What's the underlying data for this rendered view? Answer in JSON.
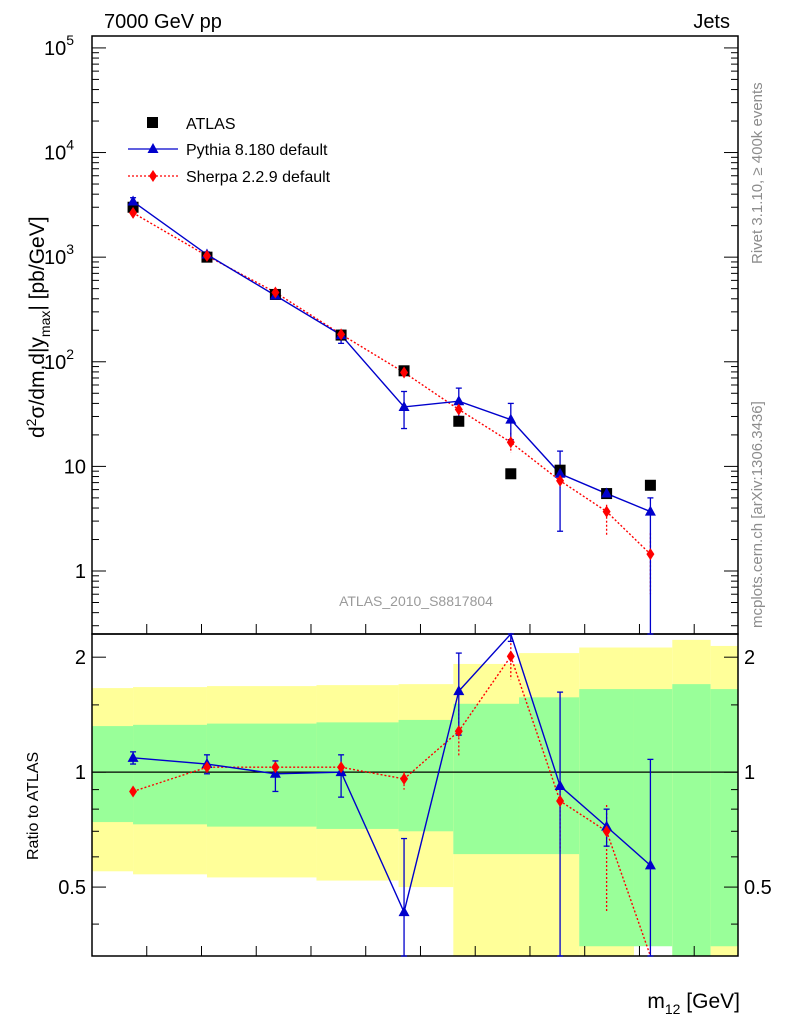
{
  "header": {
    "left_label": "7000 GeV pp",
    "right_label": "Jets"
  },
  "side": {
    "rivet": "Rivet 3.1.10, ≥ 400k events",
    "url": "mcplots.cern.ch [arXiv:1306.3436]"
  },
  "watermark": "ATLAS_2010_S8817804",
  "main_ylabel": {
    "prefix": "d",
    "sup": "2",
    "mid": "σ/dm,d|y",
    "sub": "max",
    "suffix": "| [pb/GeV]"
  },
  "ratio_ylabel": "Ratio to ATLAS",
  "xlabel": {
    "base": "m",
    "sub": "12",
    "rest": " [GeV]"
  },
  "legend": [
    {
      "key": "atlas",
      "label": "ATLAS",
      "color": "#000000",
      "marker": "square"
    },
    {
      "key": "pythia",
      "label": "Pythia 8.180 default",
      "color": "#0000cc",
      "marker": "triangle"
    },
    {
      "key": "sherpa",
      "label": "Sherpa 2.2.9 default",
      "color": "#ff0000",
      "marker": "diamond"
    }
  ],
  "chart_data": {
    "type": "scatter",
    "y_scale": "log",
    "ylim": [
      0.25,
      130000
    ],
    "ratio_ylim": [
      0.33,
      2.3
    ],
    "main_ticks": [
      {
        "value": 1,
        "label": "1",
        "exp": ""
      },
      {
        "value": 10,
        "label": "10",
        "exp": ""
      },
      {
        "value": 100,
        "label": "10",
        "exp": "2"
      },
      {
        "value": 1000,
        "label": "10",
        "exp": "3"
      },
      {
        "value": 10000,
        "label": "10",
        "exp": "4"
      },
      {
        "value": 100000,
        "label": "10",
        "exp": "5"
      }
    ],
    "ratio_ticks": [
      {
        "value": 0.5,
        "label": "0.5"
      },
      {
        "value": 1,
        "label": "1"
      },
      {
        "value": 2,
        "label": "2"
      }
    ],
    "atlas": [
      3000,
      1000,
      440,
      180,
      82,
      27,
      8.5,
      9.2,
      5.5,
      6.6
    ],
    "pythia": {
      "values": [
        3400,
        1060,
        430,
        180,
        37,
        42,
        28,
        8.5,
        5.5,
        3.7
      ],
      "err_up": [
        3700,
        1120,
        470,
        200,
        52,
        56,
        40,
        14,
        5.9,
        5.0
      ],
      "err_down": [
        3200,
        1000,
        400,
        150,
        23,
        30,
        18,
        2.4,
        5.1,
        0.2
      ]
    },
    "sherpa": {
      "values": [
        2650,
        1030,
        460,
        183,
        79,
        35,
        17,
        7.3,
        3.7,
        1.45
      ],
      "err_up": [
        2750,
        1060,
        480,
        195,
        86,
        40,
        21,
        8.3,
        4.3,
        2.3
      ],
      "err_down": [
        2550,
        1000,
        440,
        170,
        72,
        31,
        13.5,
        6.3,
        2.2,
        0.6
      ]
    },
    "ratio_pythia": {
      "values": [
        1.09,
        1.05,
        0.99,
        1.0,
        0.43,
        1.63,
        3.0,
        0.92,
        0.72,
        0.57
      ],
      "err_up": [
        1.13,
        1.11,
        1.07,
        1.11,
        0.67,
        2.05,
        4.0,
        1.62,
        0.8,
        1.08
      ],
      "err_down": [
        1.05,
        0.99,
        0.89,
        0.86,
        0.1,
        1.25,
        2.2,
        0.1,
        0.64,
        0.1
      ]
    },
    "ratio_sherpa": {
      "values": [
        0.89,
        1.03,
        1.03,
        1.03,
        0.96,
        1.28,
        2.01,
        0.84,
        0.7,
        0.22
      ],
      "err_up": [
        0.89,
        1.06,
        1.07,
        1.06,
        1.0,
        1.46,
        2.23,
        0.94,
        0.82,
        0.3
      ],
      "err_down": [
        0.89,
        1.0,
        0.99,
        0.98,
        0.9,
        1.1,
        1.75,
        0.62,
        0.43,
        0.1
      ]
    },
    "bands": {
      "x_edges": [
        0,
        0.75,
        2.1,
        4.1,
        5.6,
        6.6,
        7.8,
        8.9,
        9.9,
        10.6,
        11.3,
        11.8
      ],
      "green_low": [
        0.74,
        0.73,
        0.72,
        0.71,
        0.7,
        0.61,
        0.61,
        0.35,
        0.35,
        0.33,
        0.35
      ],
      "green_high": [
        1.32,
        1.33,
        1.34,
        1.35,
        1.37,
        1.51,
        1.57,
        1.65,
        1.65,
        1.7,
        1.65
      ],
      "yellow_low": [
        0.55,
        0.54,
        0.53,
        0.52,
        0.5,
        0.33,
        0.33,
        0.33,
        0.4,
        0.33,
        0.33
      ],
      "yellow_high": [
        1.66,
        1.67,
        1.68,
        1.69,
        1.7,
        1.92,
        2.05,
        2.12,
        2.12,
        2.22,
        2.14
      ]
    },
    "x_positions": [
      0.75,
      2.1,
      3.35,
      4.55,
      5.7,
      6.7,
      7.65,
      8.55,
      9.4,
      10.2
    ]
  }
}
